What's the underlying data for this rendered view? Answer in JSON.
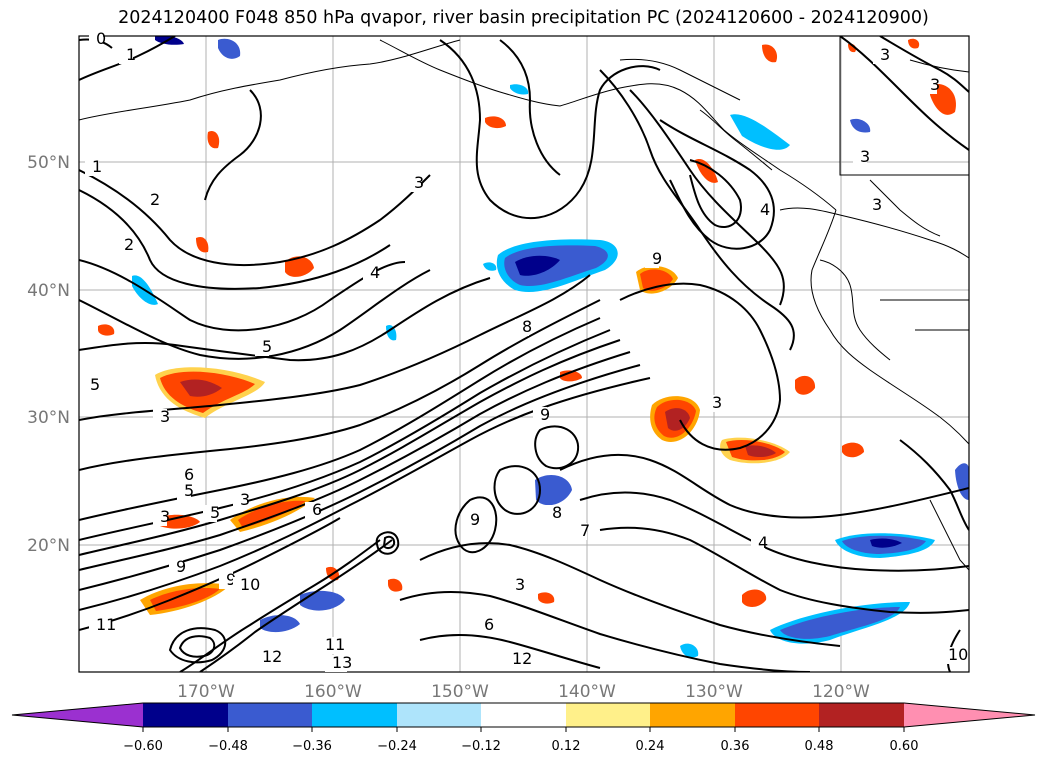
{
  "title": "2024120400 F048 850 hPa qvapor, river basin precipitation PC (2024120600 - 2024120900)",
  "map": {
    "lat_labels": [
      "50°N",
      "40°N",
      "30°N",
      "20°N"
    ],
    "lon_labels": [
      "170°W",
      "160°W",
      "150°W",
      "140°W",
      "130°W",
      "120°W"
    ],
    "contour_labels": [
      "0",
      "1",
      "1",
      "2",
      "2",
      "3",
      "3",
      "3",
      "4",
      "4",
      "5",
      "5",
      "5",
      "6",
      "5",
      "3",
      "3",
      "6",
      "9",
      "9",
      "10",
      "11",
      "12",
      "11",
      "13",
      "12",
      "10",
      "3",
      "3",
      "3",
      "4",
      "3",
      "3",
      "8",
      "9",
      "9",
      "8",
      "6",
      "7",
      "9"
    ]
  },
  "colorbar": {
    "ticks": [
      "−0.60",
      "−0.48",
      "−0.36",
      "−0.24",
      "−0.12",
      "0.12",
      "0.24",
      "0.36",
      "0.48",
      "0.60"
    ],
    "colors": [
      "#9b30d0",
      "#00008b",
      "#3a5bd0",
      "#00bfff",
      "#aee4fb",
      "#ffffff",
      "#fff08a",
      "#ffa500",
      "#ff4500",
      "#b22222",
      "#ff8fb1"
    ]
  },
  "legend_colors": {
    "qvapor_contour": "#000000",
    "coastline": "#000000",
    "gridline": "#b0b0b0"
  }
}
